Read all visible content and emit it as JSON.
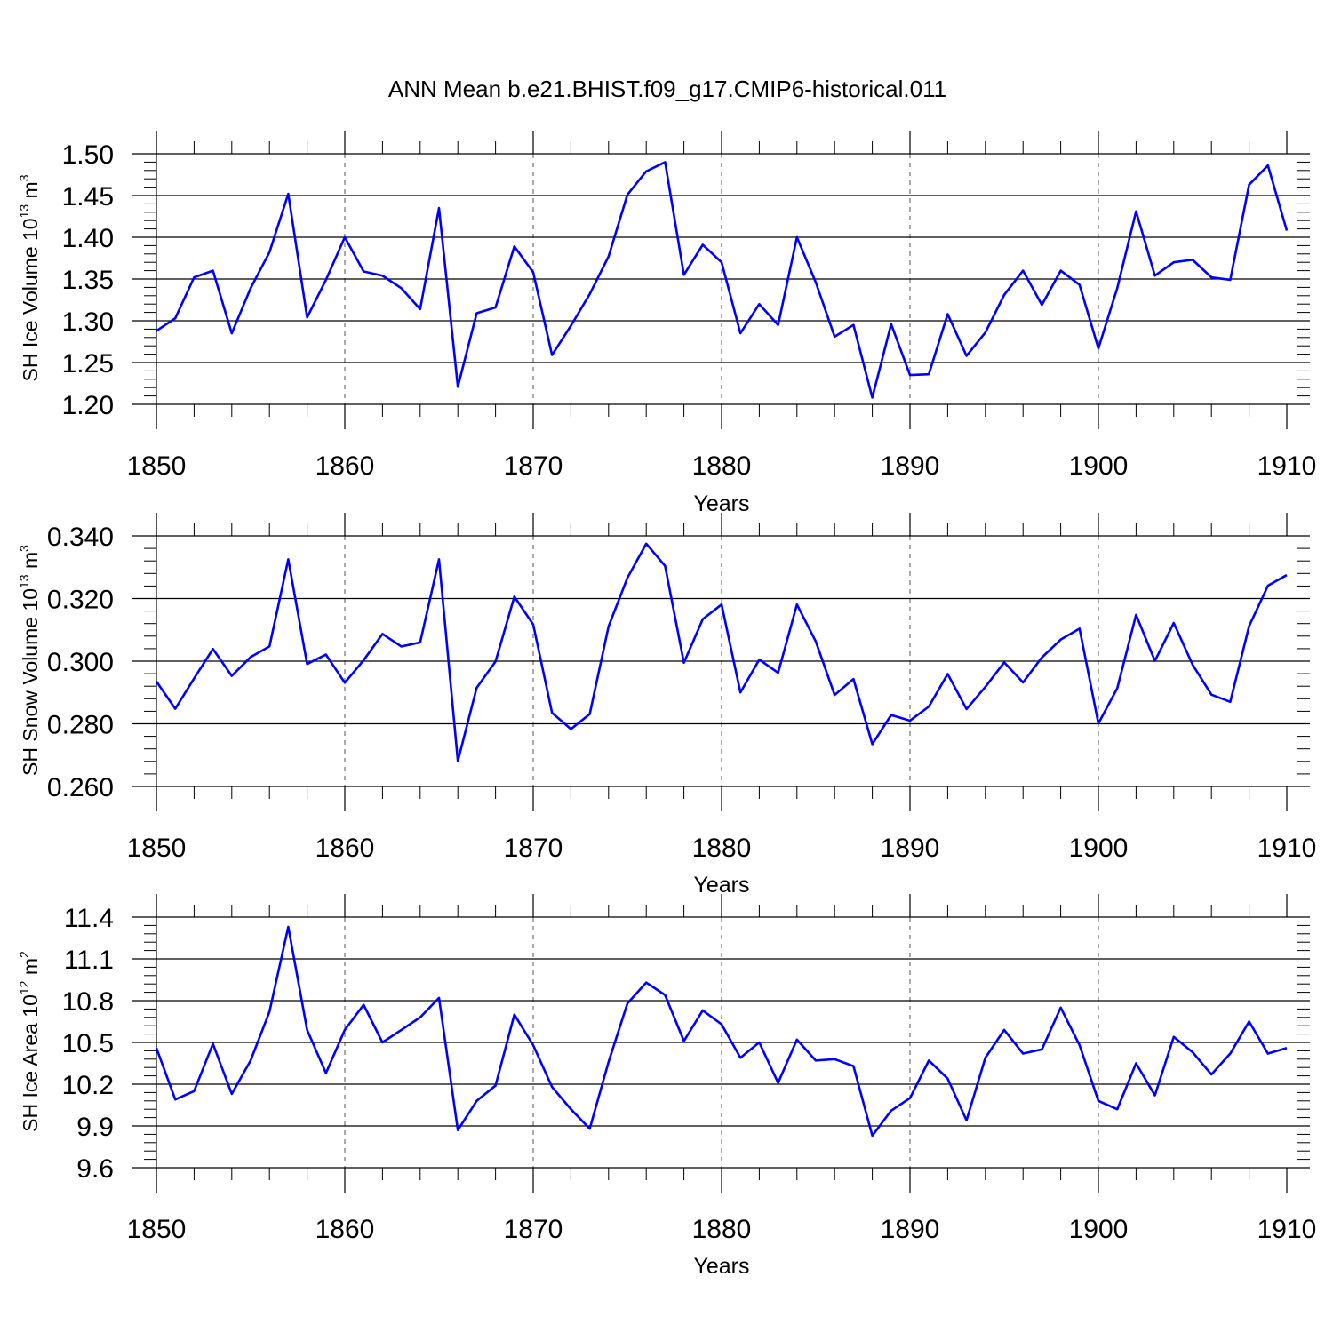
{
  "title": "ANN Mean b.e21.BHIST.f09_g17.CMIP6-historical.011",
  "line_color": "#0000ff",
  "x_tick_labels": [
    "1850",
    "1860",
    "1870",
    "1880",
    "1890",
    "1900",
    "1910"
  ],
  "chart_data": [
    {
      "type": "line",
      "ylabel": "SH Ice Volume 10",
      "ylabel_exponent": "13",
      "ylabel_unit": "m",
      "ylabel_unit_exponent": "3",
      "xlabel": "Years",
      "xlim": [
        1850,
        1910
      ],
      "ylim": [
        1.2,
        1.5
      ],
      "y_ticks": [
        1.2,
        1.25,
        1.3,
        1.35,
        1.4,
        1.45,
        1.5
      ],
      "y_tick_labels": [
        "1.20",
        "1.25",
        "1.30",
        "1.35",
        "1.40",
        "1.45",
        "1.50"
      ],
      "x_start": 1850,
      "values": [
        1.288,
        1.303,
        1.352,
        1.36,
        1.285,
        1.339,
        1.382,
        1.452,
        1.304,
        1.349,
        1.4,
        1.359,
        1.354,
        1.339,
        1.314,
        1.435,
        1.221,
        1.309,
        1.316,
        1.389,
        1.358,
        1.259,
        1.294,
        1.332,
        1.377,
        1.451,
        1.479,
        1.49,
        1.355,
        1.391,
        1.37,
        1.285,
        1.32,
        1.295,
        1.4,
        1.346,
        1.281,
        1.295,
        1.208,
        1.296,
        1.235,
        1.236,
        1.308,
        1.258,
        1.286,
        1.331,
        1.36,
        1.319,
        1.36,
        1.343,
        1.267,
        1.339,
        1.431,
        1.354,
        1.37,
        1.373,
        1.352,
        1.349,
        1.463,
        1.486,
        1.408
      ]
    },
    {
      "type": "line",
      "ylabel": "SH Snow Volume 10",
      "ylabel_exponent": "13",
      "ylabel_unit": "m",
      "ylabel_unit_exponent": "3",
      "xlabel": "Years",
      "xlim": [
        1850,
        1910
      ],
      "ylim": [
        0.26,
        0.34
      ],
      "y_ticks": [
        0.26,
        0.28,
        0.3,
        0.32,
        0.34
      ],
      "y_tick_labels": [
        "0.260",
        "0.280",
        "0.300",
        "0.320",
        "0.340"
      ],
      "x_start": 1850,
      "values": [
        0.2935,
        0.2848,
        0.2945,
        0.3039,
        0.2953,
        0.3013,
        0.3047,
        0.3325,
        0.2991,
        0.3021,
        0.2931,
        0.3003,
        0.3087,
        0.3047,
        0.306,
        0.3325,
        0.2681,
        0.2915,
        0.2999,
        0.3206,
        0.3117,
        0.2835,
        0.2783,
        0.2831,
        0.3111,
        0.3266,
        0.3375,
        0.3304,
        0.2995,
        0.3134,
        0.3181,
        0.29,
        0.3005,
        0.2963,
        0.3181,
        0.3063,
        0.2892,
        0.2943,
        0.2735,
        0.2828,
        0.281,
        0.2855,
        0.2959,
        0.2847,
        0.2918,
        0.2996,
        0.2932,
        0.3012,
        0.3069,
        0.3104,
        0.2801,
        0.2913,
        0.3148,
        0.3001,
        0.3122,
        0.2989,
        0.2893,
        0.287,
        0.3112,
        0.3241,
        0.3275
      ]
    },
    {
      "type": "line",
      "ylabel": "SH Ice Area 10",
      "ylabel_exponent": "12",
      "ylabel_unit": "m",
      "ylabel_unit_exponent": "2",
      "xlabel": "Years",
      "xlim": [
        1850,
        1910
      ],
      "ylim": [
        9.6,
        11.4
      ],
      "y_ticks": [
        9.6,
        9.9,
        10.2,
        10.5,
        10.8,
        11.1,
        11.4
      ],
      "y_tick_labels": [
        "9.6",
        "9.9",
        "10.2",
        "10.5",
        "10.8",
        "11.1",
        "11.4"
      ],
      "x_start": 1850,
      "values": [
        10.46,
        10.09,
        10.15,
        10.49,
        10.13,
        10.37,
        10.72,
        11.33,
        10.59,
        10.28,
        10.59,
        10.77,
        10.5,
        10.59,
        10.68,
        10.82,
        9.87,
        10.08,
        10.19,
        10.7,
        10.48,
        10.18,
        10.02,
        9.88,
        10.36,
        10.78,
        10.93,
        10.84,
        10.51,
        10.73,
        10.63,
        10.39,
        10.5,
        10.21,
        10.52,
        10.37,
        10.38,
        10.33,
        9.83,
        10.01,
        10.1,
        10.37,
        10.24,
        9.94,
        10.39,
        10.59,
        10.42,
        10.45,
        10.75,
        10.48,
        10.08,
        10.02,
        10.35,
        10.12,
        10.54,
        10.43,
        10.27,
        10.42,
        10.65,
        10.42,
        10.46
      ]
    }
  ]
}
